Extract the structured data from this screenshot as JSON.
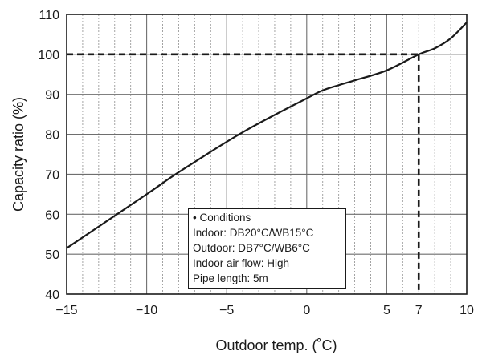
{
  "chart_data": {
    "type": "line",
    "xlabel": "Outdoor temp. (˚C)",
    "ylabel": "Capacity ratio (%)",
    "xlim": [
      -15,
      10
    ],
    "ylim": [
      40,
      110
    ],
    "x_ticks": [
      -15,
      -10,
      -5,
      0,
      5,
      7,
      10
    ],
    "x_tick_labels": [
      "−15",
      "−10",
      "−5",
      "0",
      "5",
      "7",
      "10"
    ],
    "y_ticks": [
      40,
      50,
      60,
      70,
      80,
      90,
      100,
      110
    ],
    "y_tick_labels": [
      "40",
      "50",
      "60",
      "70",
      "80",
      "90",
      "100",
      "110"
    ],
    "grid": "vertical dashed every 1 °C, horizontal every 10 %",
    "series": [
      {
        "x": [
          -15,
          -10,
          -8,
          -4,
          0,
          1,
          2,
          3,
          5,
          7,
          8,
          9,
          10
        ],
        "y": [
          51.5,
          65,
          70.5,
          80.5,
          89,
          91,
          92.3,
          93.5,
          96,
          100,
          101.5,
          104,
          108
        ]
      }
    ],
    "reference_point": {
      "x": 7,
      "y": 100
    },
    "annotation": {
      "lines": [
        "• Conditions",
        "Indoor: DB20°C/WB15°C",
        "Outdoor: DB7°C/WB6°C",
        "Indoor air flow: High",
        "Pipe length: 5m"
      ]
    }
  }
}
